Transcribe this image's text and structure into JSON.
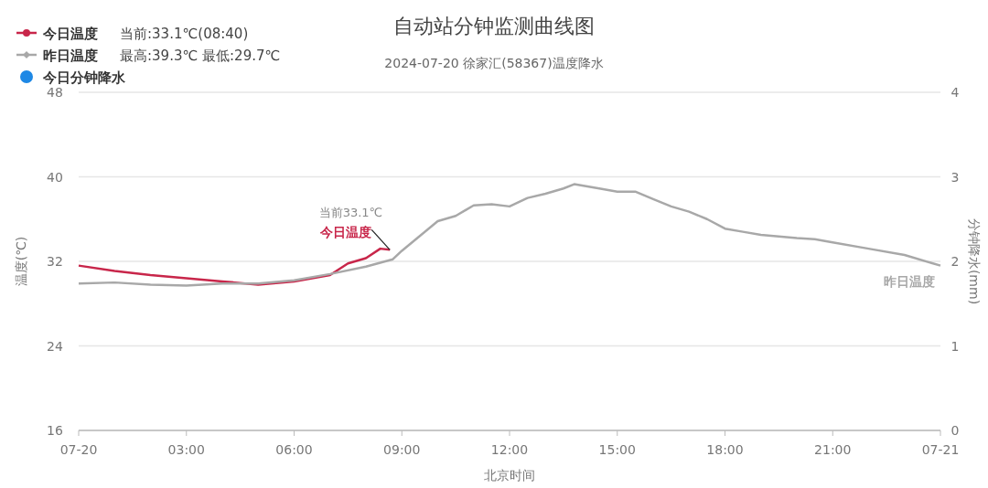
{
  "chart_data": {
    "type": "line",
    "title": "自动站分钟监测曲线图",
    "subtitle": "2024-07-20 徐家汇(58367)温度降水",
    "xlabel": "北京时间",
    "ylabel": "温度(℃)",
    "y2label": "分钟降水(mm)",
    "xlim": [
      0,
      24
    ],
    "xticks": [
      {
        "value": 0,
        "label": "07-20"
      },
      {
        "value": 3,
        "label": "03:00"
      },
      {
        "value": 6,
        "label": "06:00"
      },
      {
        "value": 9,
        "label": "09:00"
      },
      {
        "value": 12,
        "label": "12:00"
      },
      {
        "value": 15,
        "label": "15:00"
      },
      {
        "value": 18,
        "label": "18:00"
      },
      {
        "value": 21,
        "label": "21:00"
      },
      {
        "value": 24,
        "label": "07-21"
      }
    ],
    "ylim": [
      16,
      48
    ],
    "yticks": [
      16,
      24,
      32,
      40,
      48
    ],
    "y2lim": [
      0,
      4
    ],
    "y2ticks": [
      0,
      1,
      2,
      3,
      4
    ],
    "grid": "y",
    "legend": "top left",
    "series": [
      {
        "name": "今日温度",
        "color": "#c8264a",
        "x": [
          0,
          1,
          2,
          3,
          4,
          5,
          6,
          7,
          7.5,
          8,
          8.4,
          8.667
        ],
        "values": [
          31.6,
          31.1,
          30.7,
          30.4,
          30.1,
          29.8,
          30.1,
          30.7,
          31.8,
          32.3,
          33.2,
          33.1
        ]
      },
      {
        "name": "昨日温度",
        "color": "#a8a8a8",
        "x": [
          0,
          1,
          2,
          3,
          4,
          5,
          6,
          7,
          8,
          8.75,
          9,
          9.5,
          10,
          10.5,
          11,
          11.5,
          12,
          12.5,
          13,
          13.5,
          13.8,
          14.5,
          15,
          15.5,
          16,
          16.5,
          17,
          17.5,
          18,
          18.5,
          19,
          20,
          20.5,
          21,
          22,
          23,
          24
        ],
        "values": [
          29.9,
          30.0,
          29.8,
          29.7,
          29.9,
          29.9,
          30.2,
          30.8,
          31.5,
          32.2,
          33.0,
          34.4,
          35.8,
          36.3,
          37.3,
          37.4,
          37.2,
          38.0,
          38.4,
          38.9,
          39.3,
          38.9,
          38.6,
          38.6,
          37.9,
          37.2,
          36.7,
          36.0,
          35.1,
          34.8,
          34.5,
          34.2,
          34.1,
          33.8,
          33.2,
          32.6,
          31.6
        ]
      },
      {
        "name": "今日分钟降水",
        "color": "#1e88e5"
      }
    ],
    "annotations": [
      {
        "text": "当前33.1℃",
        "x": 8.667,
        "y": 33.1
      },
      "当前:33.1℃(08:40)",
      "最高:39.3℃ 最低:29.7℃"
    ]
  }
}
